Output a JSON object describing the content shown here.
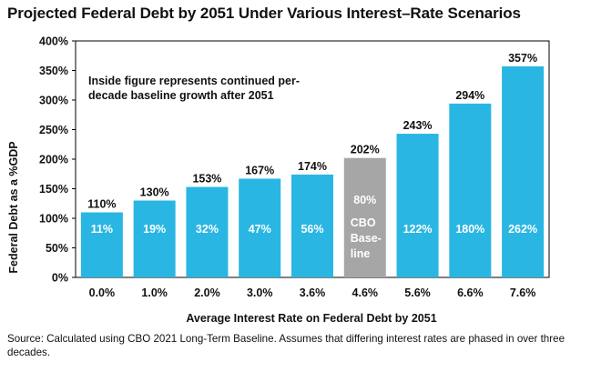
{
  "chart_data": {
    "type": "bar",
    "title": "Projected Federal Debt by 2051 Under Various Interest–Rate Scenarios",
    "xlabel": "Average Interest Rate on Federal Debt by 2051",
    "ylabel": "Federal Debt as a %GDP",
    "ylim": [
      0,
      400
    ],
    "yticks": [
      "0%",
      "50%",
      "100%",
      "150%",
      "200%",
      "250%",
      "300%",
      "350%",
      "400%"
    ],
    "categories": [
      "0.0%",
      "1.0%",
      "2.0%",
      "3.0%",
      "3.6%",
      "4.6%",
      "5.6%",
      "6.6%",
      "7.6%"
    ],
    "values": [
      110,
      130,
      153,
      167,
      174,
      202,
      243,
      294,
      357
    ],
    "top_labels": [
      "110%",
      "130%",
      "153%",
      "167%",
      "174%",
      "202%",
      "243%",
      "294%",
      "357%"
    ],
    "inside_labels": [
      "11%",
      "19%",
      "32%",
      "47%",
      "56%",
      "80%",
      "122%",
      "180%",
      "262%"
    ],
    "highlight_index": 5,
    "highlight_text": [
      "CBO",
      "Base-",
      "line"
    ],
    "annotation": [
      "Inside figure represents continued per-",
      "decade baseline growth after 2051"
    ],
    "grid": false,
    "colors": {
      "bar": "#29b6e3",
      "baseline_bar": "#a6a6a6",
      "inside_text": "#ffffff"
    }
  },
  "source": "Source: Calculated using CBO 2021 Long-Term Baseline. Assumes that differing interest rates are phased in over three decades."
}
